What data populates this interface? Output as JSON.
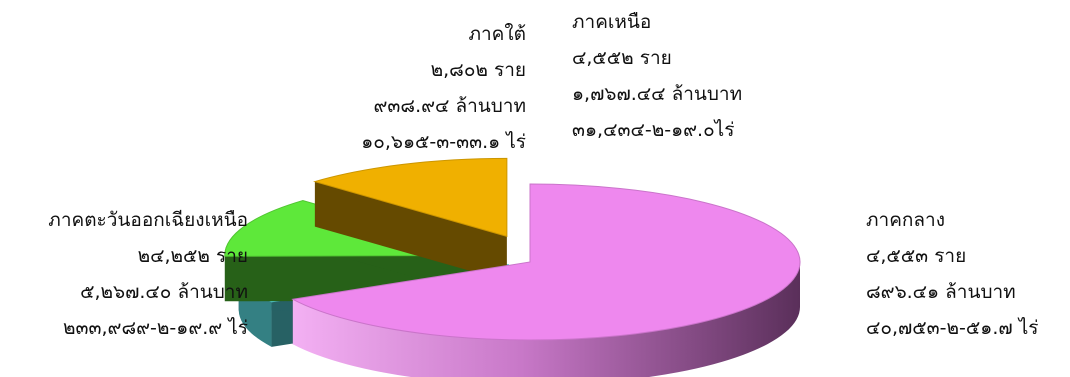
{
  "chart_data": {
    "type": "pie",
    "style": "3d-exploded",
    "title": "",
    "legend": "none",
    "unit_count": "ราย",
    "slices": [
      {
        "key": "northeast",
        "region": "ภาคตะวันออกเฉียงเหนือ",
        "count": 24252,
        "lines": [
          "ภาคตะวันออกเฉียงเหนือ",
          "๒๔,๒๕๒ ราย",
          "๕,๒๖๗.๔๐ ล้านบาท",
          "๒๓๓,๙๘๙-๒-๑๙.๙ ไร่"
        ],
        "color": "#ee88ee"
      },
      {
        "key": "south",
        "region": "ภาคใต้",
        "count": 2802,
        "lines": [
          "ภาคใต้",
          "๒,๘๐๒ ราย",
          "๙๓๘.๙๔ ล้านบาท",
          "๑๐,๖๑๕-๓-๓๓.๑ ไร่"
        ],
        "color": "#5ee8ee"
      },
      {
        "key": "north",
        "region": "ภาคเหนือ",
        "count": 4552,
        "lines": [
          "ภาคเหนือ",
          "๔,๕๕๒ ราย",
          "๑,๗๖๗.๔๔ ล้านบาท",
          "๓๑,๔๓๔-๒-๑๙.๐ไร่"
        ],
        "color": "#5ee83a"
      },
      {
        "key": "central",
        "region": "ภาคกลาง",
        "count": 4553,
        "lines": [
          "ภาคกลาง",
          "๔,๕๕๓ ราย",
          "๘๙๖.๔๑ ล้านบาท",
          "๔๐,๗๕๓-๒-๕๑.๗ ไร่"
        ],
        "color": "#f0b000"
      }
    ]
  }
}
